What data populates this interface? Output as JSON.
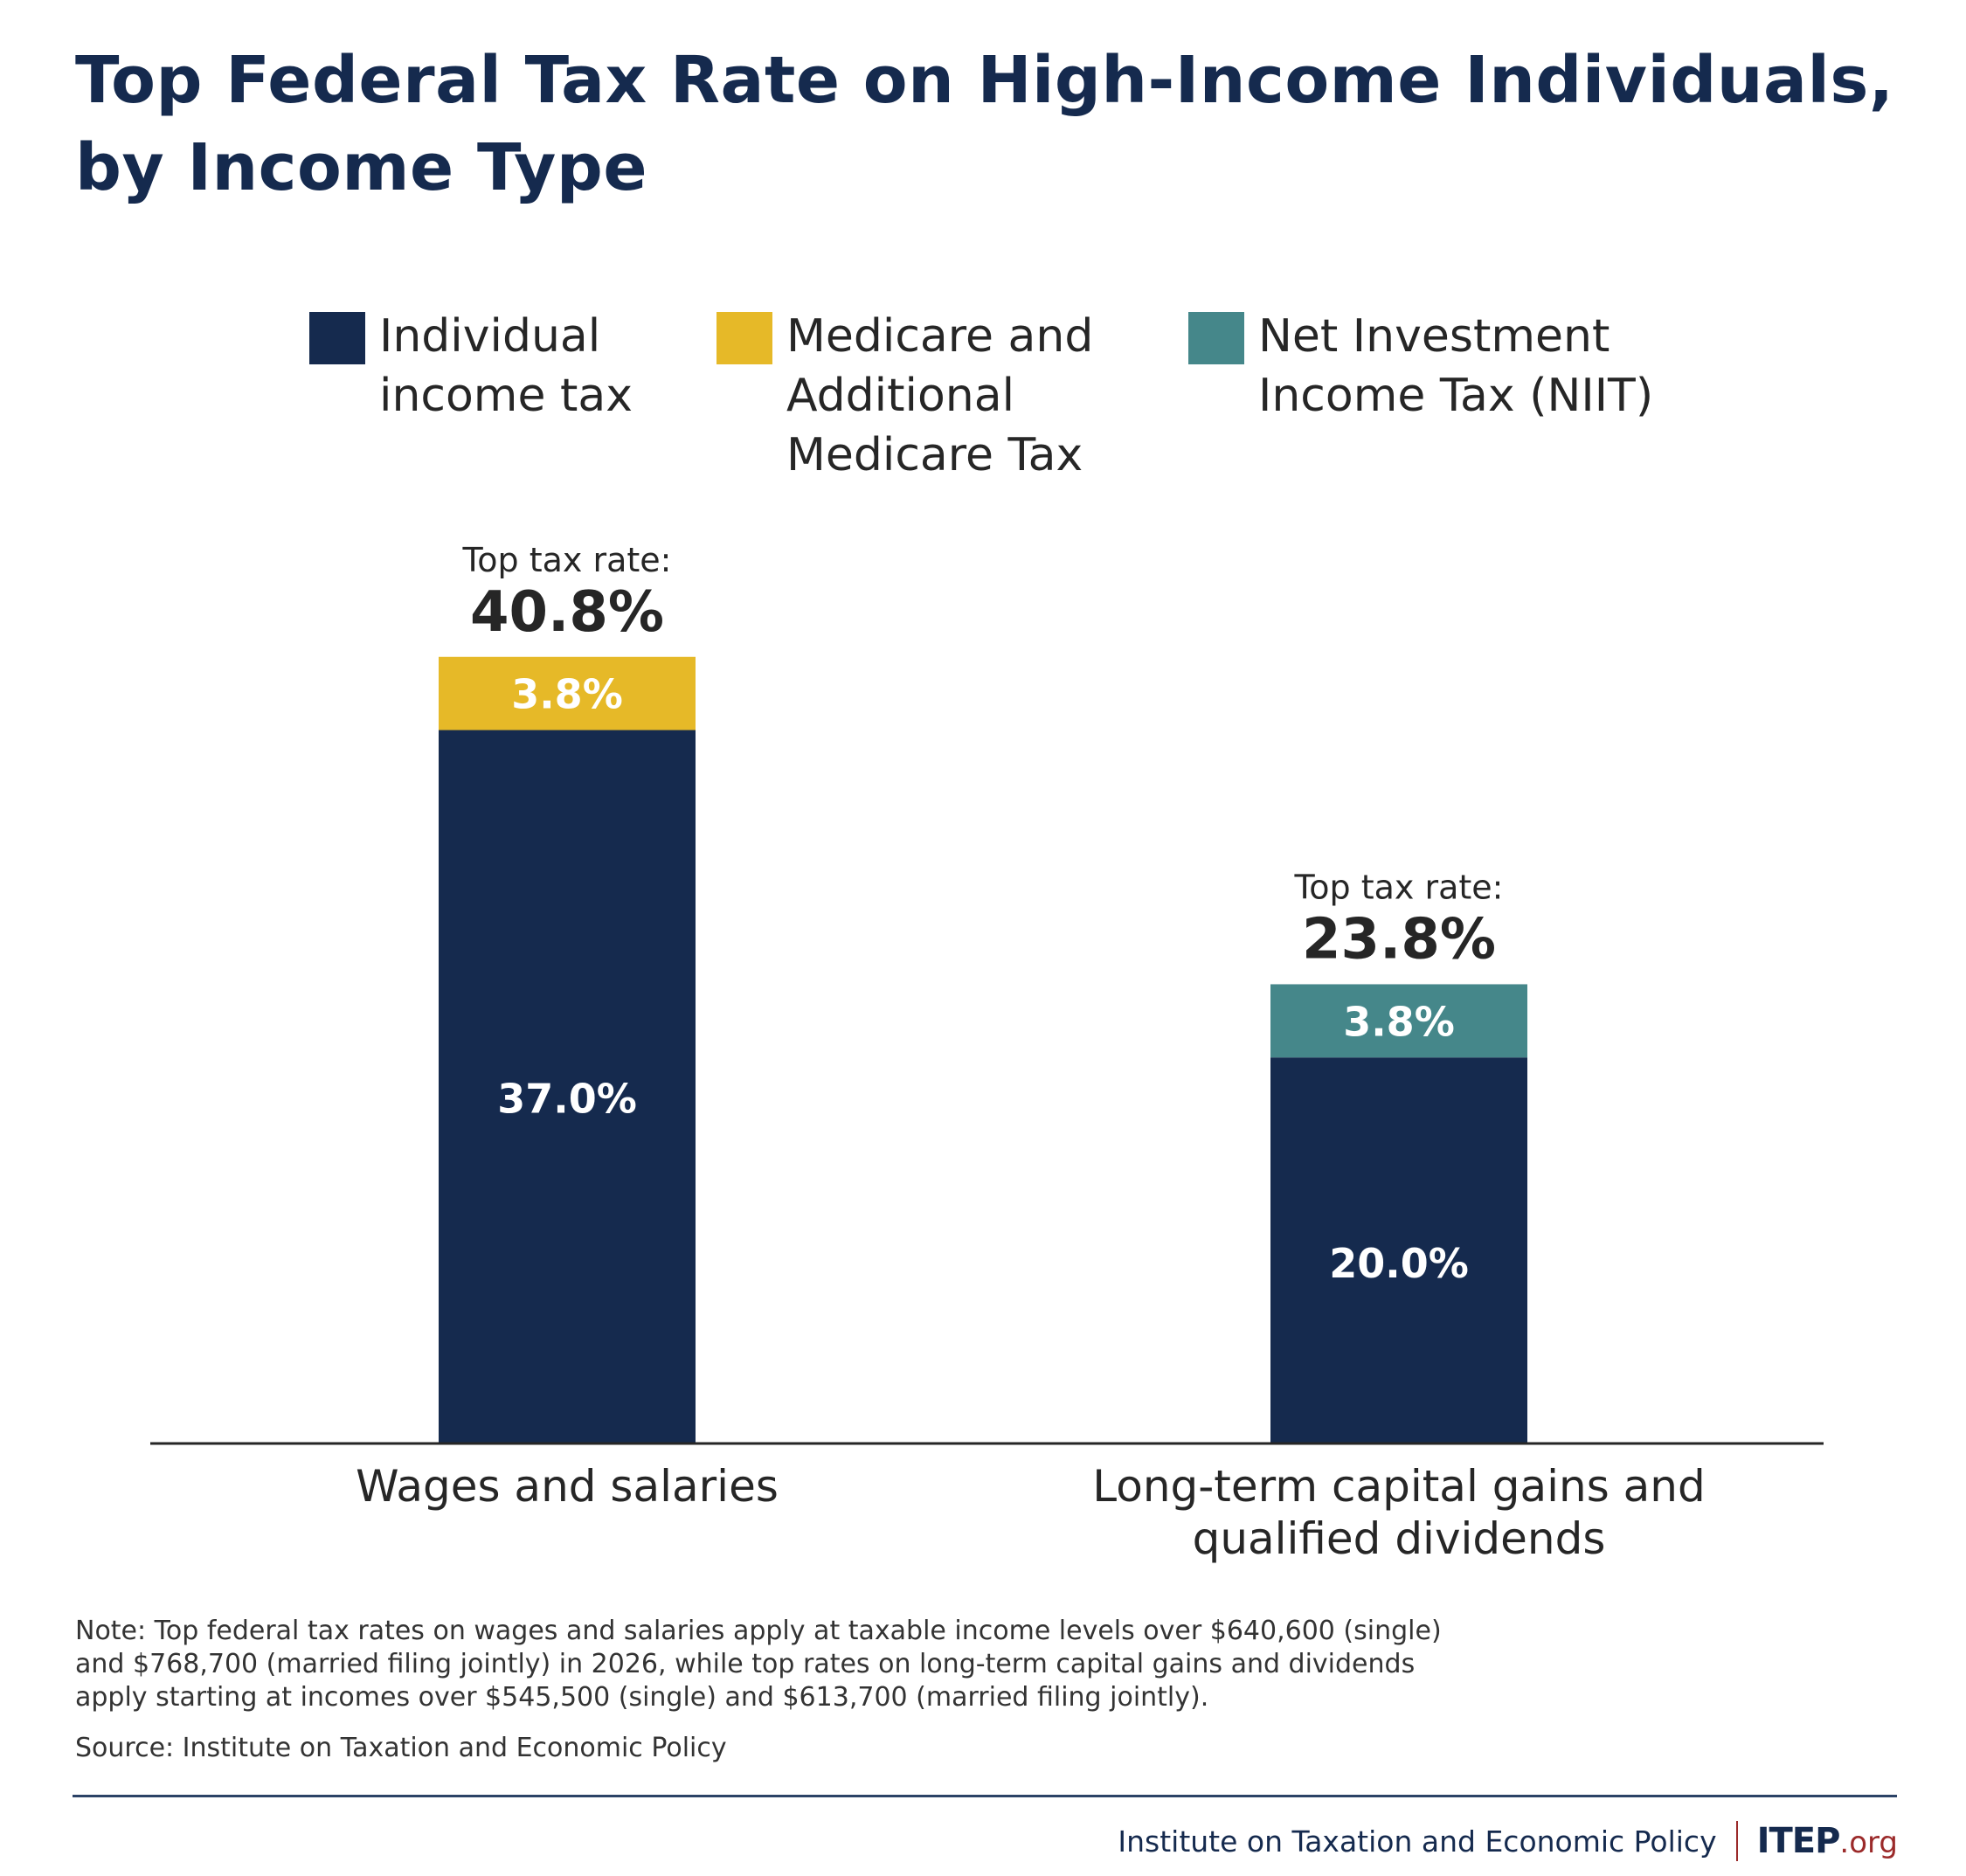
{
  "title": {
    "line1": "Top Federal Tax Rate on High-Income Individuals,",
    "line2": "by Income Type"
  },
  "legend": [
    {
      "key": "individual",
      "lines": [
        "Individual",
        "income tax"
      ],
      "color": "#152a4e"
    },
    {
      "key": "medicare",
      "lines": [
        "Medicare and",
        "Additional",
        "Medicare Tax"
      ],
      "color": "#e6b928"
    },
    {
      "key": "niit",
      "lines": [
        "Net Investment",
        "Income Tax (NIIT)"
      ],
      "color": "#45878a"
    }
  ],
  "chart_data": {
    "type": "bar",
    "stacked": true,
    "title": "Top Federal Tax Rate on High-Income Individuals, by Income Type",
    "xlabel": "",
    "ylabel": "",
    "ylim": [
      0,
      40.8
    ],
    "grid": false,
    "legend_position": "top",
    "categories": [
      [
        "Wages and salaries"
      ],
      [
        "Long-term capital gains and",
        "qualified dividends"
      ]
    ],
    "series": [
      {
        "name": "Individual income tax",
        "color": "#152a4e",
        "values": [
          37.0,
          20.0
        ],
        "labels": [
          "37.0%",
          "20.0%"
        ]
      },
      {
        "name": "Medicare and Additional Medicare Tax",
        "color": "#e6b928",
        "values": [
          3.8,
          0
        ],
        "labels": [
          "3.8%",
          ""
        ]
      },
      {
        "name": "Net Investment Income Tax (NIIT)",
        "color": "#45878a",
        "values": [
          0,
          3.8
        ],
        "labels": [
          "",
          "3.8%"
        ]
      }
    ],
    "totals": [
      {
        "caption": "Top tax rate:",
        "value": 40.8,
        "label": "40.8%"
      },
      {
        "caption": "Top tax rate:",
        "value": 23.8,
        "label": "23.8%"
      }
    ]
  },
  "note": {
    "lines": [
      "Note: Top federal tax rates on wages and salaries apply at taxable income levels over $640,600 (single)",
      "and $768,700 (married filing jointly) in 2026, while top rates on long-term capital gains and dividends",
      "apply starting at incomes over $545,500 (single) and $613,700 (married filing jointly)."
    ]
  },
  "source": "Source: Institute on Taxation and Economic Policy",
  "footer": {
    "org": "Institute on Taxation and Economic Policy",
    "brand": "ITEP",
    "tld": ".org"
  }
}
